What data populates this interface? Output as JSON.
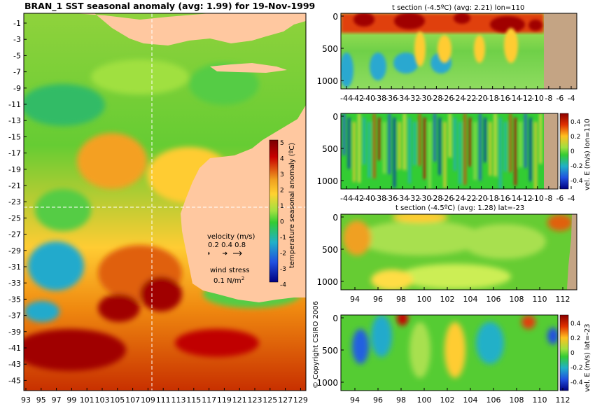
{
  "title": "BRAN_1 SST seasonal anomaly (avg: 1.99) for 19-Nov-1999",
  "copyright": "© Copyright CSIRO 2006",
  "map": {
    "x_ticks": [
      "93",
      "95",
      "97",
      "99",
      "101",
      "103",
      "105",
      "107",
      "109",
      "111",
      "113",
      "115",
      "117",
      "119",
      "121",
      "123",
      "125",
      "127",
      "129"
    ],
    "y_ticks": [
      "-1",
      "-3",
      "-5",
      "-7",
      "-9",
      "-11",
      "-13",
      "-15",
      "-17",
      "-19",
      "-21",
      "-23",
      "-25",
      "-27",
      "-29",
      "-31",
      "-33",
      "-35",
      "-37",
      "-39",
      "-41",
      "-43",
      "-45"
    ],
    "colorbar_label": "temperature seasonal anomaly (ºC)",
    "colorbar_ticks": [
      "5",
      "4",
      "3",
      "2",
      "1",
      "0",
      "-1",
      "-2",
      "-3",
      "-4"
    ],
    "velocity_label": "velocity (m/s)",
    "velocity_scale": "0.2 0.4 0.8",
    "wind_label": "wind stress",
    "wind_scale": "0.1 N/m",
    "wind_exp": "2",
    "crosshair": {
      "lon": 110,
      "lat": -23
    }
  },
  "panels": {
    "p1": {
      "title": "t section (-4.5ºC) (avg: 2.21) lon=110",
      "x_ticks": [
        "-44",
        "-42",
        "-40",
        "-38",
        "-36",
        "-34",
        "-32",
        "-30",
        "-28",
        "-26",
        "-24",
        "-22",
        "-20",
        "-18",
        "-16",
        "-14",
        "-12",
        "-10",
        "-8",
        "-6",
        "-4"
      ],
      "y_ticks": [
        "0",
        "500",
        "1000"
      ]
    },
    "p2": {
      "title": "",
      "x_ticks": [
        "-44",
        "-42",
        "-40",
        "-38",
        "-36",
        "-34",
        "-32",
        "-30",
        "-28",
        "-26",
        "-24",
        "-22",
        "-20",
        "-18",
        "-16",
        "-14",
        "-12",
        "-10",
        "-8",
        "-6",
        "-4"
      ],
      "y_ticks": [
        "0",
        "500",
        "1000"
      ],
      "cb_label": "vel. E (m/s) lon=110",
      "cb_ticks": [
        "0.4",
        "0.2",
        "0",
        "-0.2",
        "-0.4"
      ]
    },
    "p3": {
      "title": "t section (-4.5ºC) (avg: 1.28) lat=-23",
      "x_ticks": [
        "94",
        "96",
        "98",
        "100",
        "102",
        "104",
        "106",
        "108",
        "110",
        "112"
      ],
      "y_ticks": [
        "0",
        "500",
        "1000"
      ]
    },
    "p4": {
      "title": "",
      "x_ticks": [
        "94",
        "96",
        "98",
        "100",
        "102",
        "104",
        "106",
        "108",
        "110",
        "112"
      ],
      "y_ticks": [
        "0",
        "500",
        "1000"
      ],
      "cb_label": "vel. E (m/s) lat=-23",
      "cb_ticks": [
        "0.4",
        "0.2",
        "0",
        "-0.2",
        "-0.4"
      ]
    }
  },
  "chart_data": [
    {
      "type": "heatmap",
      "title": "BRAN_1 SST seasonal anomaly (avg: 1.99) for 19-Nov-1999",
      "xlabel": "",
      "ylabel": "",
      "x_range": [
        92.5,
        130
      ],
      "y_range": [
        -45,
        0
      ],
      "colorbar": {
        "label": "temperature seasonal anomaly (ºC)",
        "range": [
          -4,
          5
        ]
      },
      "colors": {
        "land": "#ffc8a0",
        "high": "#8a0000",
        "mid": "#66cc33",
        "low": "#0000a0"
      }
    },
    {
      "type": "heatmap",
      "title": "t section (-4.5ºC) (avg: 2.21) lon=110",
      "x_range": [
        -45,
        -3
      ],
      "y_range": [
        1100,
        0
      ],
      "colors": {
        "land": "#c4a484"
      }
    },
    {
      "type": "heatmap",
      "title": "",
      "x_range": [
        -45,
        -3
      ],
      "y_range": [
        1100,
        0
      ],
      "colorbar": {
        "label": "vel. E (m/s) lon=110",
        "range": [
          -0.5,
          0.5
        ]
      }
    },
    {
      "type": "heatmap",
      "title": "t section (-4.5ºC) (avg: 1.28) lat=-23",
      "x_range": [
        93,
        114
      ],
      "y_range": [
        1100,
        0
      ]
    },
    {
      "type": "heatmap",
      "title": "",
      "x_range": [
        93,
        114
      ],
      "y_range": [
        1100,
        0
      ],
      "colorbar": {
        "label": "vel. E (m/s) lat=-23",
        "range": [
          -0.5,
          0.5
        ]
      }
    }
  ]
}
